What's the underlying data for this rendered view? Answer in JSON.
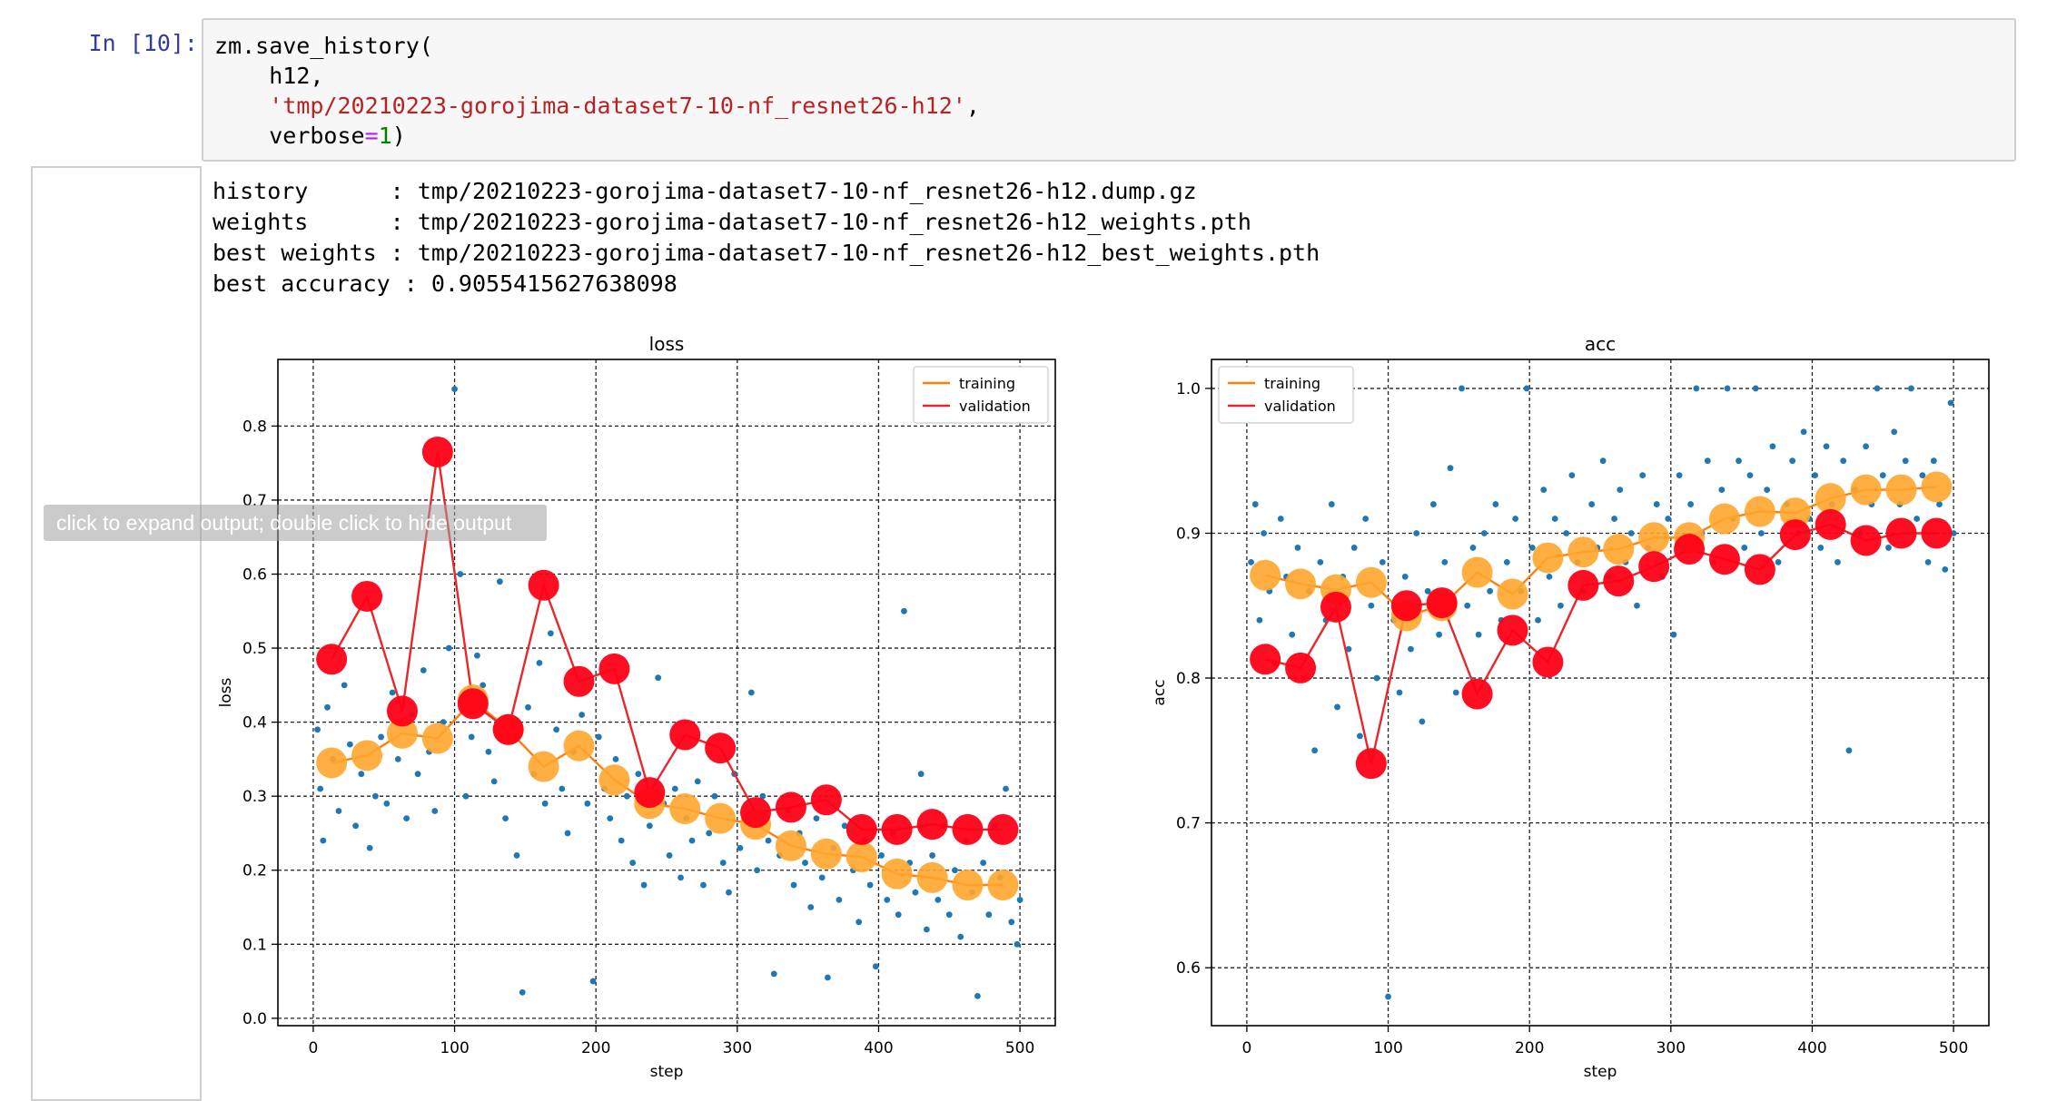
{
  "prompt": "In [10]:",
  "code": {
    "line1": "zm.save_history(",
    "line2_indent": "    ",
    "line2": "h12,",
    "line3_string": "'tmp/20210223-gorojima-dataset7-10-nf_resnet26-h12'",
    "line3_comma": ",",
    "line4_name": "verbose",
    "line4_eq": "=",
    "line4_num": "1",
    "line4_close": ")"
  },
  "output": {
    "lines": [
      "history      : tmp/20210223-gorojima-dataset7-10-nf_resnet26-h12.dump.gz",
      "weights      : tmp/20210223-gorojima-dataset7-10-nf_resnet26-h12_weights.pth",
      "best weights : tmp/20210223-gorojima-dataset7-10-nf_resnet26-h12_best_weights.pth",
      "best accuracy : 0.9055415627638098"
    ]
  },
  "tooltip": "click to expand output; double click to hide output",
  "colors": {
    "training": "#ff7f0e",
    "training_marker": "#ffa52e",
    "validation": "#e8272a",
    "validation_marker": "#ff0016",
    "scatter": "#1f77b4"
  },
  "chart_data": [
    {
      "type": "line",
      "title": "loss",
      "xlabel": "step",
      "ylabel": "loss",
      "xlim": [
        -25,
        525
      ],
      "ylim": [
        -0.01,
        0.89
      ],
      "xticks": [
        0,
        100,
        200,
        300,
        400,
        500
      ],
      "yticks": [
        0.0,
        0.1,
        0.2,
        0.3,
        0.4,
        0.5,
        0.6,
        0.7,
        0.8
      ],
      "grid": true,
      "legend_position": "top-right",
      "x": [
        13,
        38,
        63,
        88,
        113,
        138,
        163,
        188,
        213,
        238,
        263,
        288,
        313,
        338,
        363,
        388,
        413,
        438,
        463,
        488
      ],
      "series": [
        {
          "name": "training",
          "values": [
            0.345,
            0.355,
            0.385,
            0.378,
            0.43,
            0.39,
            0.34,
            0.368,
            0.322,
            0.29,
            0.283,
            0.27,
            0.262,
            0.233,
            0.222,
            0.218,
            0.195,
            0.19,
            0.18,
            0.18
          ]
        },
        {
          "name": "validation",
          "values": [
            0.485,
            0.57,
            0.415,
            0.765,
            0.425,
            0.39,
            0.585,
            0.455,
            0.472,
            0.305,
            0.383,
            0.365,
            0.278,
            0.285,
            0.295,
            0.255,
            0.255,
            0.262,
            0.255,
            0.255
          ]
        }
      ],
      "scatter_note": "per-step minibatch values (estimated)",
      "scatter": [
        [
          3,
          0.39
        ],
        [
          5,
          0.31
        ],
        [
          7,
          0.24
        ],
        [
          10,
          0.42
        ],
        [
          14,
          0.35
        ],
        [
          18,
          0.28
        ],
        [
          22,
          0.45
        ],
        [
          26,
          0.37
        ],
        [
          30,
          0.26
        ],
        [
          34,
          0.33
        ],
        [
          40,
          0.23
        ],
        [
          44,
          0.3
        ],
        [
          48,
          0.38
        ],
        [
          52,
          0.29
        ],
        [
          56,
          0.44
        ],
        [
          60,
          0.35
        ],
        [
          66,
          0.27
        ],
        [
          70,
          0.41
        ],
        [
          74,
          0.33
        ],
        [
          78,
          0.47
        ],
        [
          82,
          0.36
        ],
        [
          86,
          0.28
        ],
        [
          92,
          0.4
        ],
        [
          96,
          0.5
        ],
        [
          100,
          0.85
        ],
        [
          104,
          0.6
        ],
        [
          108,
          0.3
        ],
        [
          112,
          0.38
        ],
        [
          116,
          0.49
        ],
        [
          120,
          0.45
        ],
        [
          124,
          0.36
        ],
        [
          128,
          0.32
        ],
        [
          132,
          0.59
        ],
        [
          136,
          0.27
        ],
        [
          140,
          0.4
        ],
        [
          144,
          0.22
        ],
        [
          148,
          0.035
        ],
        [
          152,
          0.42
        ],
        [
          156,
          0.33
        ],
        [
          160,
          0.48
        ],
        [
          164,
          0.29
        ],
        [
          168,
          0.52
        ],
        [
          172,
          0.39
        ],
        [
          176,
          0.31
        ],
        [
          180,
          0.25
        ],
        [
          184,
          0.36
        ],
        [
          190,
          0.41
        ],
        [
          194,
          0.29
        ],
        [
          198,
          0.05
        ],
        [
          202,
          0.38
        ],
        [
          206,
          0.31
        ],
        [
          210,
          0.27
        ],
        [
          214,
          0.35
        ],
        [
          218,
          0.24
        ],
        [
          222,
          0.3
        ],
        [
          226,
          0.21
        ],
        [
          230,
          0.33
        ],
        [
          234,
          0.18
        ],
        [
          238,
          0.26
        ],
        [
          244,
          0.46
        ],
        [
          248,
          0.29
        ],
        [
          252,
          0.22
        ],
        [
          256,
          0.31
        ],
        [
          260,
          0.19
        ],
        [
          264,
          0.27
        ],
        [
          268,
          0.24
        ],
        [
          272,
          0.32
        ],
        [
          276,
          0.18
        ],
        [
          280,
          0.25
        ],
        [
          284,
          0.3
        ],
        [
          290,
          0.21
        ],
        [
          294,
          0.17
        ],
        [
          298,
          0.33
        ],
        [
          302,
          0.23
        ],
        [
          306,
          0.27
        ],
        [
          310,
          0.44
        ],
        [
          314,
          0.2
        ],
        [
          318,
          0.3
        ],
        [
          322,
          0.24
        ],
        [
          326,
          0.06
        ],
        [
          330,
          0.22
        ],
        [
          336,
          0.28
        ],
        [
          340,
          0.18
        ],
        [
          344,
          0.25
        ],
        [
          348,
          0.21
        ],
        [
          352,
          0.15
        ],
        [
          356,
          0.27
        ],
        [
          360,
          0.19
        ],
        [
          364,
          0.055
        ],
        [
          368,
          0.23
        ],
        [
          372,
          0.16
        ],
        [
          376,
          0.26
        ],
        [
          382,
          0.2
        ],
        [
          386,
          0.13
        ],
        [
          390,
          0.24
        ],
        [
          394,
          0.18
        ],
        [
          398,
          0.07
        ],
        [
          402,
          0.22
        ],
        [
          406,
          0.16
        ],
        [
          410,
          0.25
        ],
        [
          414,
          0.14
        ],
        [
          418,
          0.55
        ],
        [
          422,
          0.21
        ],
        [
          426,
          0.17
        ],
        [
          430,
          0.33
        ],
        [
          434,
          0.12
        ],
        [
          438,
          0.22
        ],
        [
          442,
          0.16
        ],
        [
          446,
          0.26
        ],
        [
          450,
          0.14
        ],
        [
          454,
          0.2
        ],
        [
          458,
          0.11
        ],
        [
          462,
          0.24
        ],
        [
          466,
          0.17
        ],
        [
          470,
          0.03
        ],
        [
          474,
          0.21
        ],
        [
          478,
          0.14
        ],
        [
          482,
          0.26
        ],
        [
          486,
          0.19
        ],
        [
          490,
          0.31
        ],
        [
          494,
          0.13
        ],
        [
          498,
          0.1
        ],
        [
          500,
          0.16
        ]
      ]
    },
    {
      "type": "line",
      "title": "acc",
      "xlabel": "step",
      "ylabel": "acc",
      "xlim": [
        -25,
        525
      ],
      "ylim": [
        0.56,
        1.02
      ],
      "xticks": [
        0,
        100,
        200,
        300,
        400,
        500
      ],
      "yticks": [
        0.6,
        0.7,
        0.8,
        0.9,
        1.0
      ],
      "grid": true,
      "legend_position": "top-left",
      "x": [
        13,
        38,
        63,
        88,
        113,
        138,
        163,
        188,
        213,
        238,
        263,
        288,
        313,
        338,
        363,
        388,
        413,
        438,
        463,
        488
      ],
      "series": [
        {
          "name": "training",
          "values": [
            0.871,
            0.865,
            0.861,
            0.866,
            0.843,
            0.85,
            0.873,
            0.858,
            0.883,
            0.887,
            0.889,
            0.897,
            0.897,
            0.91,
            0.915,
            0.914,
            0.924,
            0.93,
            0.93,
            0.932
          ]
        },
        {
          "name": "validation",
          "values": [
            0.813,
            0.807,
            0.849,
            0.741,
            0.85,
            0.852,
            0.789,
            0.833,
            0.811,
            0.864,
            0.867,
            0.877,
            0.889,
            0.882,
            0.875,
            0.899,
            0.906,
            0.895,
            0.9,
            0.9
          ]
        }
      ],
      "scatter_note": "per-step minibatch values (estimated)",
      "scatter": [
        [
          3,
          0.88
        ],
        [
          6,
          0.92
        ],
        [
          9,
          0.84
        ],
        [
          12,
          0.9
        ],
        [
          16,
          0.86
        ],
        [
          20,
          0.81
        ],
        [
          24,
          0.91
        ],
        [
          28,
          0.87
        ],
        [
          32,
          0.83
        ],
        [
          36,
          0.89
        ],
        [
          40,
          0.8
        ],
        [
          44,
          0.86
        ],
        [
          48,
          0.75
        ],
        [
          52,
          0.88
        ],
        [
          56,
          0.84
        ],
        [
          60,
          0.92
        ],
        [
          64,
          0.78
        ],
        [
          68,
          0.87
        ],
        [
          72,
          0.82
        ],
        [
          76,
          0.89
        ],
        [
          80,
          0.76
        ],
        [
          84,
          0.91
        ],
        [
          88,
          0.85
        ],
        [
          92,
          0.8
        ],
        [
          96,
          0.88
        ],
        [
          100,
          0.58
        ],
        [
          104,
          0.84
        ],
        [
          108,
          0.79
        ],
        [
          112,
          0.87
        ],
        [
          116,
          0.82
        ],
        [
          120,
          0.9
        ],
        [
          124,
          0.77
        ],
        [
          128,
          0.86
        ],
        [
          132,
          0.92
        ],
        [
          136,
          0.83
        ],
        [
          140,
          0.88
        ],
        [
          144,
          0.945
        ],
        [
          148,
          0.79
        ],
        [
          152,
          1.0
        ],
        [
          156,
          0.85
        ],
        [
          160,
          0.89
        ],
        [
          164,
          0.83
        ],
        [
          168,
          0.9
        ],
        [
          172,
          0.86
        ],
        [
          176,
          0.92
        ],
        [
          180,
          0.84
        ],
        [
          184,
          0.88
        ],
        [
          190,
          0.91
        ],
        [
          194,
          0.86
        ],
        [
          198,
          1.0
        ],
        [
          202,
          0.89
        ],
        [
          206,
          0.84
        ],
        [
          210,
          0.93
        ],
        [
          214,
          0.87
        ],
        [
          218,
          0.91
        ],
        [
          222,
          0.85
        ],
        [
          226,
          0.9
        ],
        [
          230,
          0.94
        ],
        [
          234,
          0.88
        ],
        [
          238,
          0.86
        ],
        [
          244,
          0.92
        ],
        [
          248,
          0.89
        ],
        [
          252,
          0.95
        ],
        [
          256,
          0.87
        ],
        [
          260,
          0.91
        ],
        [
          264,
          0.93
        ],
        [
          268,
          0.88
        ],
        [
          272,
          0.9
        ],
        [
          276,
          0.85
        ],
        [
          280,
          0.94
        ],
        [
          284,
          0.89
        ],
        [
          290,
          0.92
        ],
        [
          294,
          0.87
        ],
        [
          298,
          0.91
        ],
        [
          302,
          0.83
        ],
        [
          306,
          0.94
        ],
        [
          310,
          0.89
        ],
        [
          314,
          0.92
        ],
        [
          318,
          1.0
        ],
        [
          322,
          0.9
        ],
        [
          326,
          0.95
        ],
        [
          330,
          0.88
        ],
        [
          336,
          0.93
        ],
        [
          340,
          1.0
        ],
        [
          344,
          0.91
        ],
        [
          348,
          0.95
        ],
        [
          352,
          0.89
        ],
        [
          356,
          0.94
        ],
        [
          360,
          1.0
        ],
        [
          364,
          0.9
        ],
        [
          368,
          0.93
        ],
        [
          372,
          0.96
        ],
        [
          376,
          0.88
        ],
        [
          382,
          0.92
        ],
        [
          386,
          0.95
        ],
        [
          390,
          0.9
        ],
        [
          394,
          0.97
        ],
        [
          398,
          0.91
        ],
        [
          402,
          0.94
        ],
        [
          406,
          0.89
        ],
        [
          410,
          0.96
        ],
        [
          414,
          0.92
        ],
        [
          418,
          0.88
        ],
        [
          422,
          0.95
        ],
        [
          426,
          0.75
        ],
        [
          430,
          0.93
        ],
        [
          434,
          0.9
        ],
        [
          438,
          0.96
        ],
        [
          442,
          0.92
        ],
        [
          446,
          1.0
        ],
        [
          450,
          0.94
        ],
        [
          454,
          0.89
        ],
        [
          458,
          0.97
        ],
        [
          462,
          0.92
        ],
        [
          466,
          0.95
        ],
        [
          470,
          1.0
        ],
        [
          474,
          0.91
        ],
        [
          478,
          0.94
        ],
        [
          482,
          0.88
        ],
        [
          486,
          0.95
        ],
        [
          490,
          0.92
        ],
        [
          494,
          0.875
        ],
        [
          498,
          0.99
        ],
        [
          500,
          0.9
        ]
      ]
    }
  ]
}
